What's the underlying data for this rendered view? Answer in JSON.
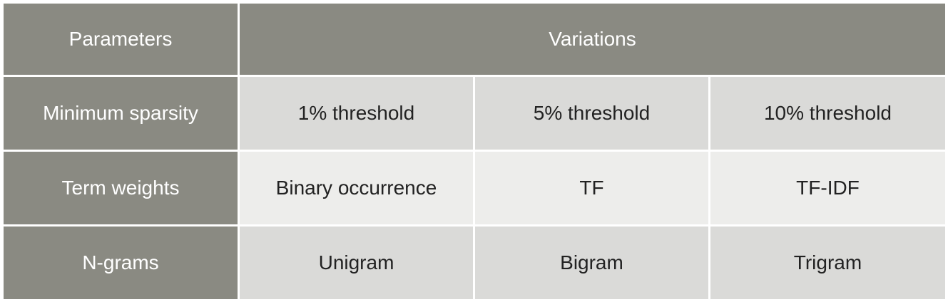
{
  "table": {
    "header": {
      "parameters": "Parameters",
      "variations": "Variations"
    },
    "rows": [
      {
        "label": "Minimum sparsity",
        "values": [
          "1% threshold",
          "5% threshold",
          "10% threshold"
        ]
      },
      {
        "label": "Term weights",
        "values": [
          "Binary occurrence",
          "TF",
          "TF-IDF"
        ]
      },
      {
        "label": "N-grams",
        "values": [
          "Unigram",
          "Bigram",
          "Trigram"
        ]
      }
    ],
    "colors": {
      "header_bg": "#8a8a82",
      "row_dark_bg": "#dadad8",
      "row_light_bg": "#ededeb",
      "header_text": "#ffffff",
      "cell_text": "#222222"
    }
  }
}
